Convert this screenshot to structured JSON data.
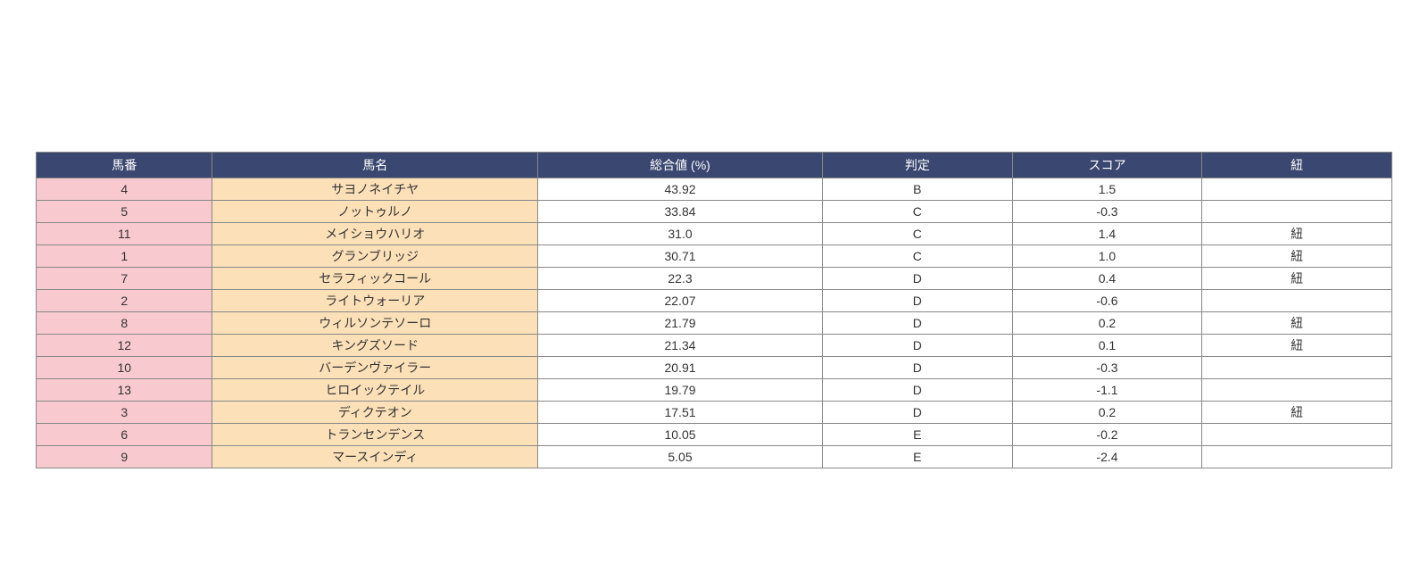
{
  "table": {
    "type": "table",
    "header_bg": "#3a4770",
    "header_text_color": "#ffffff",
    "col1_bg": "#f8c9ce",
    "col2_bg": "#fce0b8",
    "default_bg": "#ffffff",
    "border_color": "#888888",
    "font_size": 14,
    "columns": [
      {
        "label": "馬番",
        "width": "13%"
      },
      {
        "label": "馬名",
        "width": "24%"
      },
      {
        "label": "総合値 (%)",
        "width": "21%"
      },
      {
        "label": "判定",
        "width": "14%"
      },
      {
        "label": "スコア",
        "width": "14%"
      },
      {
        "label": "紐",
        "width": "14%"
      }
    ],
    "rows": [
      {
        "num": "4",
        "name": "サヨノネイチヤ",
        "total": "43.92",
        "grade": "B",
        "score": "1.5",
        "himo": ""
      },
      {
        "num": "5",
        "name": "ノットゥルノ",
        "total": "33.84",
        "grade": "C",
        "score": "-0.3",
        "himo": ""
      },
      {
        "num": "11",
        "name": "メイショウハリオ",
        "total": "31.0",
        "grade": "C",
        "score": "1.4",
        "himo": "紐"
      },
      {
        "num": "1",
        "name": "グランブリッジ",
        "total": "30.71",
        "grade": "C",
        "score": "1.0",
        "himo": "紐"
      },
      {
        "num": "7",
        "name": "セラフィックコール",
        "total": "22.3",
        "grade": "D",
        "score": "0.4",
        "himo": "紐"
      },
      {
        "num": "2",
        "name": "ライトウォーリア",
        "total": "22.07",
        "grade": "D",
        "score": "-0.6",
        "himo": ""
      },
      {
        "num": "8",
        "name": "ウィルソンテソーロ",
        "total": "21.79",
        "grade": "D",
        "score": "0.2",
        "himo": "紐"
      },
      {
        "num": "12",
        "name": "キングズソード",
        "total": "21.34",
        "grade": "D",
        "score": "0.1",
        "himo": "紐"
      },
      {
        "num": "10",
        "name": "バーデンヴァイラー",
        "total": "20.91",
        "grade": "D",
        "score": "-0.3",
        "himo": ""
      },
      {
        "num": "13",
        "name": "ヒロイックテイル",
        "total": "19.79",
        "grade": "D",
        "score": "-1.1",
        "himo": ""
      },
      {
        "num": "3",
        "name": "ディクテオン",
        "total": "17.51",
        "grade": "D",
        "score": "0.2",
        "himo": "紐"
      },
      {
        "num": "6",
        "name": "トランセンデンス",
        "total": "10.05",
        "grade": "E",
        "score": "-0.2",
        "himo": ""
      },
      {
        "num": "9",
        "name": "マースインディ",
        "total": "5.05",
        "grade": "E",
        "score": "-2.4",
        "himo": ""
      }
    ]
  }
}
